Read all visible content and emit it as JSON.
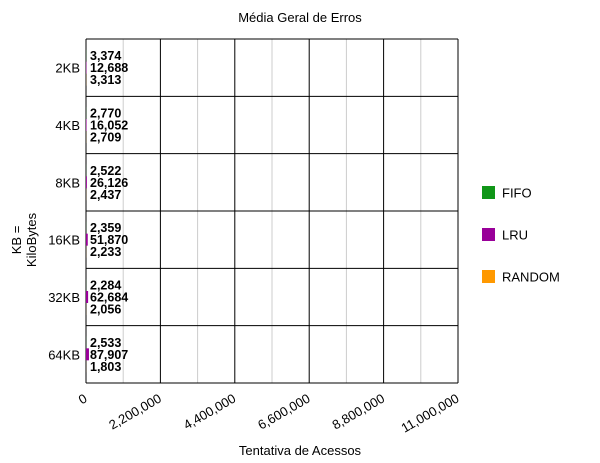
{
  "chart_data": {
    "type": "bar",
    "orientation": "horizontal",
    "title": "Média Geral de Erros",
    "xlabel": "Tentativa de Acessos",
    "ylabel_line1": "KB =",
    "ylabel_line2": "KiloBytes",
    "categories": [
      "2KB",
      "4KB",
      "8KB",
      "16KB",
      "32KB",
      "64KB"
    ],
    "series": [
      {
        "name": "FIFO",
        "color": "#109618",
        "values": [
          3374,
          2770,
          2522,
          2359,
          2284,
          2533
        ],
        "labels": [
          "3,374",
          "2,770",
          "2,522",
          "2,359",
          "2,284",
          "2,533"
        ]
      },
      {
        "name": "LRU",
        "color": "#990099",
        "values": [
          12688,
          16052,
          26126,
          51870,
          62684,
          87907
        ],
        "labels": [
          "12,688",
          "16,052",
          "26,126",
          "51,870",
          "62,684",
          "87,907"
        ]
      },
      {
        "name": "RANDOM",
        "color": "#ff9900",
        "values": [
          3313,
          2709,
          2437,
          2233,
          2056,
          1803
        ],
        "labels": [
          "3,313",
          "2,709",
          "2,437",
          "2,233",
          "2,056",
          "1,803"
        ]
      }
    ],
    "xlim": [
      0,
      11000000
    ],
    "xticks": [
      0,
      2200000,
      4400000,
      6600000,
      8800000,
      11000000
    ],
    "xtick_labels": [
      "0",
      "2,200,000",
      "4,400,000",
      "6,600,000",
      "8,800,000",
      "11,000,000"
    ],
    "grid": true,
    "legend": "right"
  }
}
